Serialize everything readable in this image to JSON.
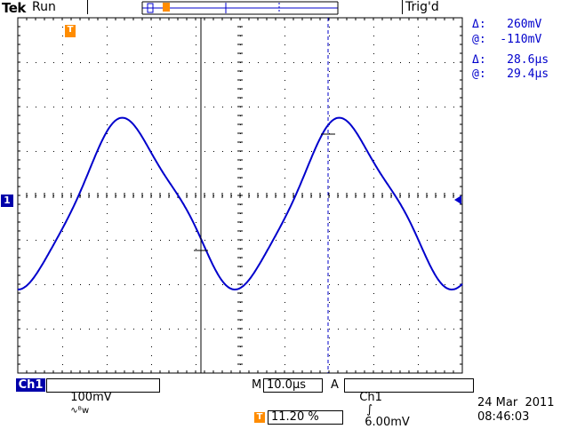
{
  "header": {
    "brand": "Tek",
    "run_state": "Run",
    "trigger_status": "Trig'd"
  },
  "cursor_readouts": {
    "voltage_delta": "Δ:   260mV",
    "voltage_at": "@:  -110mV",
    "time_delta": "Δ:   28.6μs",
    "time_at": "@:   29.4μs"
  },
  "bottom_bar": {
    "channel": "Ch1",
    "volts_per_div": "100mV",
    "coupling_symbol": "∿ᴮw",
    "timebase_prefix": "M",
    "time_per_div": "10.0μs",
    "trigger_source_prefix": "A",
    "trigger_source": "Ch1",
    "trigger_slope_symbol": "∫",
    "trigger_level": "6.00mV",
    "trigger_position": "11.20 %",
    "trigger_marker_label": "T",
    "ground_marker_label": "1"
  },
  "datetime": {
    "date": "24 Mar  2011",
    "time": "08:46:03"
  },
  "colors": {
    "trace": "#0000cc",
    "trigger_marker": "#ff8c00",
    "channel_badge": "#0000aa"
  }
}
